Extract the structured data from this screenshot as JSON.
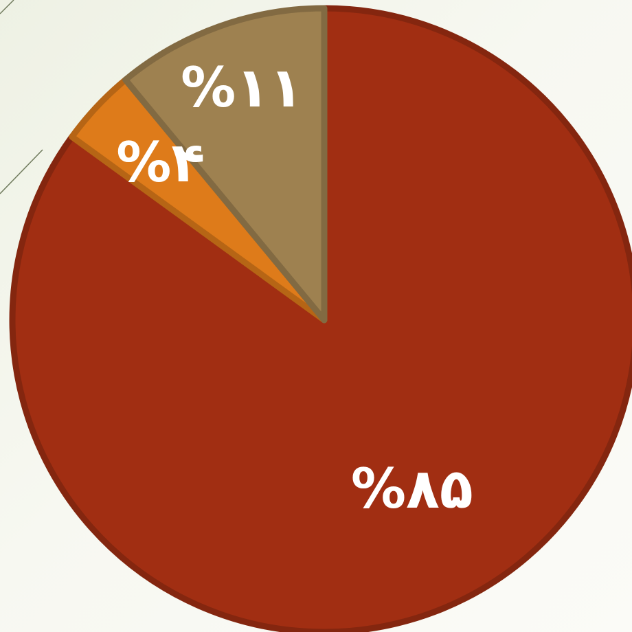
{
  "chart_data": {
    "type": "pie",
    "slices": [
      {
        "label": "%۸۵",
        "value": 85,
        "color": "#a12e12"
      },
      {
        "label": "%۴",
        "value": 4,
        "color": "#de7b1a"
      },
      {
        "label": "%۱۱",
        "value": 11,
        "color": "#9e8150"
      }
    ],
    "start": "top",
    "direction": "clockwise",
    "legend": "none",
    "title": ""
  }
}
